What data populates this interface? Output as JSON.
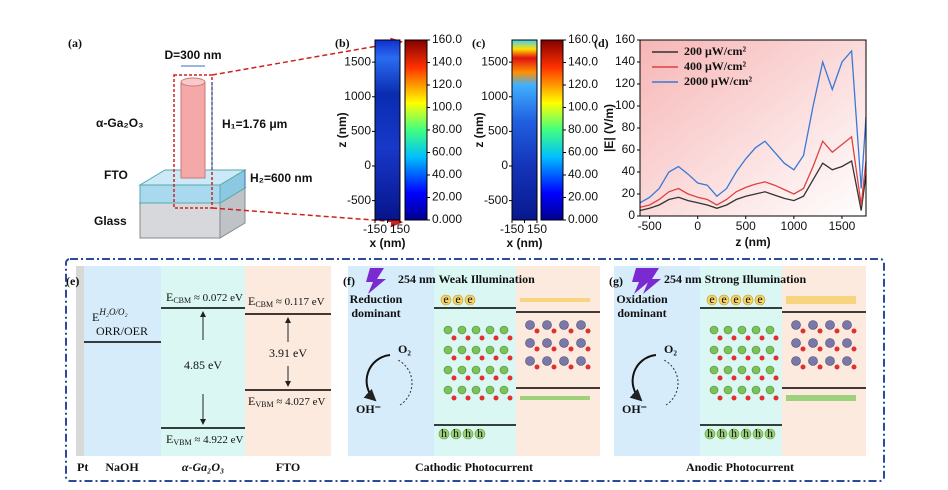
{
  "panel_a": {
    "label": "(a)",
    "diameter": "D=300 nm",
    "material": "α-Ga₂O₃",
    "h1": "H₁=1.76 μm",
    "h2": "H₂=600 nm",
    "fto": "FTO",
    "glass": "Glass"
  },
  "chart_data": [
    {
      "type": "heatmap",
      "title": "(b)",
      "xlabel": "x (nm)",
      "ylabel": "z (nm)",
      "xlim": [
        -150,
        150
      ],
      "xticks": [
        -150,
        0,
        150
      ],
      "ylim": [
        -780,
        1820
      ],
      "yticks": [
        -500,
        0,
        500,
        1000,
        1500
      ],
      "colorbar": {
        "lim": [
          0,
          160
        ],
        "ticks": [
          {
            "value": 0,
            "label": "0.000"
          },
          {
            "value": 20,
            "label": "20.00"
          },
          {
            "value": 40,
            "label": "40.00"
          },
          {
            "value": 60,
            "label": "60.00"
          },
          {
            "value": 80,
            "label": "80.00"
          },
          {
            "value": 100,
            "label": "100.0"
          },
          {
            "value": 120,
            "label": "120.0"
          },
          {
            "value": 140,
            "label": "140.0"
          },
          {
            "value": 160,
            "label": "160.0"
          }
        ]
      }
    },
    {
      "type": "heatmap",
      "title": "(c)",
      "xlabel": "x (nm)",
      "ylabel": "z (nm)",
      "xlim": [
        -150,
        150
      ],
      "xticks": [
        -150,
        0,
        150
      ],
      "ylim": [
        -780,
        1820
      ],
      "yticks": [
        -500,
        0,
        500,
        1000,
        1500
      ],
      "colorbar": {
        "lim": [
          0,
          160
        ],
        "ticks": [
          {
            "value": 0,
            "label": "0.000"
          },
          {
            "value": 20,
            "label": "20.00"
          },
          {
            "value": 40,
            "label": "40.00"
          },
          {
            "value": 60,
            "label": "60.00"
          },
          {
            "value": 80,
            "label": "80.00"
          },
          {
            "value": 100,
            "label": "100.0"
          },
          {
            "value": 120,
            "label": "120.0"
          },
          {
            "value": 140,
            "label": "140.0"
          },
          {
            "value": 160,
            "label": "160.0"
          }
        ]
      }
    },
    {
      "type": "line",
      "title": "(d)",
      "xlabel": "z (nm)",
      "ylabel": "|E| (V/m)",
      "xlim": [
        -600,
        1750
      ],
      "xticks": [
        -500,
        0,
        500,
        1000,
        1500
      ],
      "ylim": [
        0,
        160
      ],
      "yticks": [
        0,
        20,
        40,
        60,
        80,
        100,
        120,
        140,
        160
      ],
      "x": [
        -600,
        -500,
        -400,
        -300,
        -200,
        -100,
        0,
        100,
        200,
        300,
        400,
        500,
        600,
        700,
        800,
        900,
        1000,
        1100,
        1200,
        1300,
        1400,
        1500,
        1600,
        1700,
        1750
      ],
      "series": [
        {
          "name": "200 μW/cm²",
          "color": "#333333",
          "values": [
            5,
            7,
            10,
            15,
            17,
            14,
            12,
            10,
            7,
            10,
            15,
            18,
            20,
            22,
            19,
            16,
            14,
            18,
            33,
            48,
            42,
            45,
            50,
            5,
            38
          ]
        },
        {
          "name": "400 μW/cm²",
          "color": "#e04040",
          "values": [
            8,
            10,
            15,
            22,
            25,
            20,
            17,
            15,
            10,
            15,
            22,
            26,
            29,
            31,
            28,
            24,
            20,
            25,
            45,
            68,
            58,
            65,
            72,
            10,
            50
          ]
        },
        {
          "name": "2000 μW/cm²",
          "color": "#3a78d8",
          "values": [
            12,
            17,
            25,
            40,
            45,
            38,
            30,
            28,
            18,
            25,
            40,
            52,
            62,
            68,
            58,
            48,
            42,
            55,
            100,
            140,
            115,
            140,
            150,
            25,
            90
          ]
        }
      ],
      "legend": "upper left"
    }
  ],
  "panel_e": {
    "label": "(e)",
    "redox_e": "E",
    "redox_sup": "H₂O/O₂",
    "redox": "ORR/OER",
    "ga_cbm": {
      "e": "E",
      "sub": "CBM",
      "val": " ≈ 0.072 eV"
    },
    "ga_vbm": {
      "e": "E",
      "sub": "VBM",
      "val": " ≈ 4.922 eV"
    },
    "fto_cbm": {
      "e": "E",
      "sub": "CBM",
      "val": " ≈ 0.117 eV"
    },
    "fto_vbm": {
      "e": "E",
      "sub": "VBM",
      "val": " ≈ 4.027 eV"
    },
    "ga_gap": "4.85 eV",
    "fto_gap": "3.91 eV",
    "pt": "Pt",
    "naoh": "NaOH",
    "ga": "α-Ga₂O₃",
    "fto": "FTO"
  },
  "panel_f": {
    "label": "(f)",
    "light": "254 nm Weak Illumination",
    "dominant": [
      "Reduction",
      "dominant"
    ],
    "o2": "O₂",
    "oh": "OH⁻",
    "electron": "e",
    "hole": "h",
    "caption": "Cathodic Photocurrent"
  },
  "panel_g": {
    "label": "(g)",
    "light": "254 nm Strong Illumination",
    "dominant": [
      "Oxidation",
      "dominant"
    ],
    "o2": "O₂",
    "oh": "OH⁻",
    "electron": "e",
    "hole": "h",
    "caption": "Anodic Photocurrent"
  }
}
